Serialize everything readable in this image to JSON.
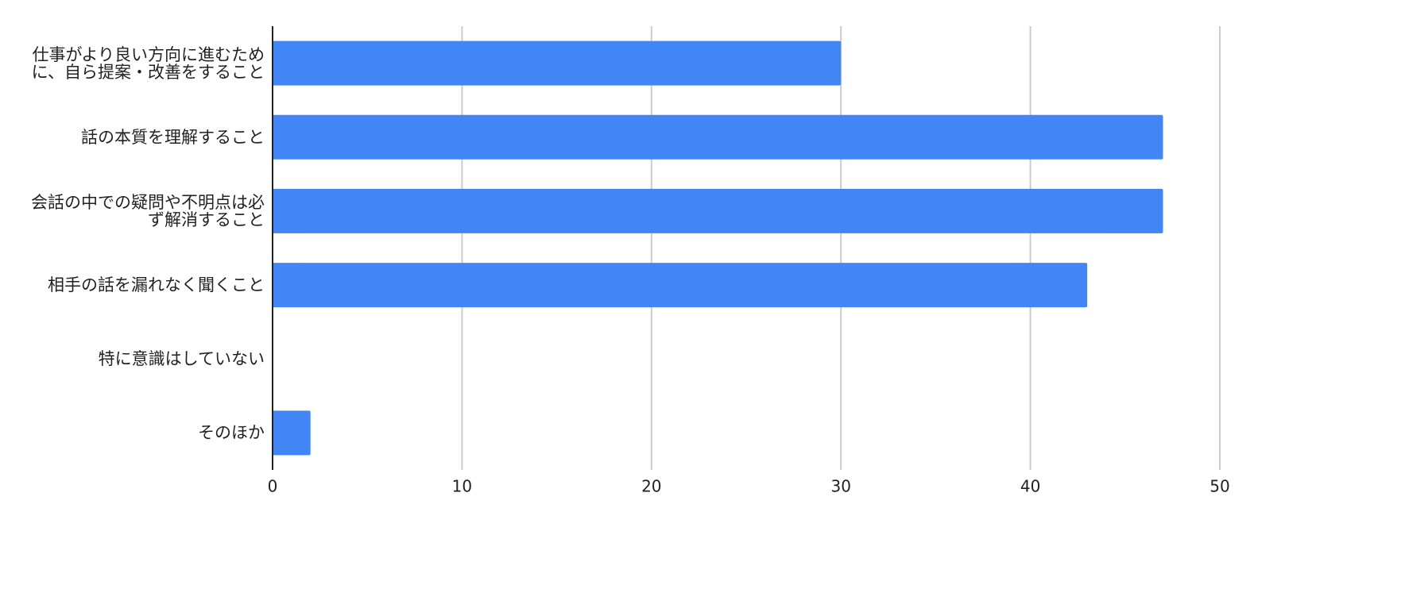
{
  "chart_data": {
    "type": "bar",
    "orientation": "horizontal",
    "categories": [
      "仕事がより良い方向に進むために、自ら提案・改善をすること",
      "話の本質を理解すること",
      "会話の中での疑問や不明点は必ず解消すること",
      "相手の話を漏れなく聞くこと",
      "特に意識はしていない",
      "そのほか"
    ],
    "values": [
      30,
      47,
      47,
      43,
      0,
      2
    ],
    "color": "#4285f4",
    "xlim": [
      0,
      50
    ],
    "xticks": [
      0,
      10,
      20,
      30,
      40,
      50
    ],
    "grid": true
  }
}
